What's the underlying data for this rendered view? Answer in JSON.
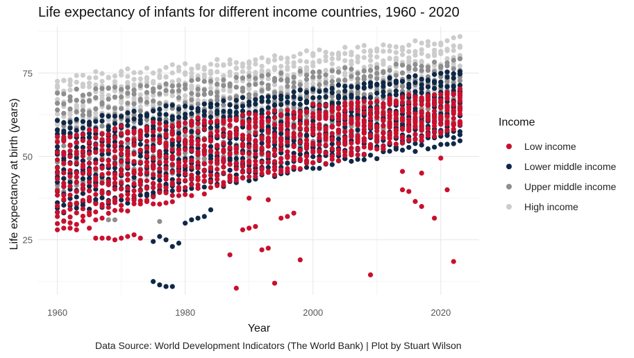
{
  "title": "Life expectancy of infants for different income countries, 1960 - 2020",
  "caption": "Data Source: World Development Indicators (The World Bank) | Plot by Stuart Wilson",
  "legend": {
    "title": "Income",
    "items": [
      {
        "label": "Low income",
        "color": "#c8102e"
      },
      {
        "label": "Lower middle income",
        "color": "#0f2847"
      },
      {
        "label": "Upper middle income",
        "color": "#8e8e8e"
      },
      {
        "label": "High income",
        "color": "#cccccc"
      }
    ]
  },
  "chart_data": {
    "type": "scatter",
    "title": "Life expectancy of infants for different income countries, 1960 - 2020",
    "xlabel": "Year",
    "ylabel": "Life expectancy at birth (years)",
    "xlim": [
      1957,
      2026
    ],
    "ylim": [
      8.5,
      89
    ],
    "x_ticks": [
      1960,
      1980,
      2000,
      2020
    ],
    "y_ticks": [
      25,
      50,
      75
    ],
    "grid": true,
    "legend_position": "right",
    "year_range": [
      1960,
      2023
    ],
    "series": [
      {
        "name": "High income",
        "color": "#cccccc",
        "low_start": 55,
        "low_end": 67,
        "high_start": 74,
        "high_end": 86,
        "count": 12
      },
      {
        "name": "Upper middle income",
        "color": "#8e8e8e",
        "low_start": 38,
        "low_end": 61,
        "high_start": 70,
        "high_end": 79,
        "count": 12,
        "outliers": [
          [
            1968,
            31
          ],
          [
            1969,
            31
          ],
          [
            1976,
            30.5
          ]
        ]
      },
      {
        "name": "Lower middle income",
        "color": "#0f2847",
        "low_start": 32,
        "low_end": 54,
        "high_start": 61,
        "high_end": 76,
        "count": 14,
        "outliers": [
          [
            1975,
            24.5
          ],
          [
            1976,
            26
          ],
          [
            1977,
            25
          ],
          [
            1978,
            23
          ],
          [
            1979,
            24
          ],
          [
            1975,
            12.5
          ],
          [
            1976,
            11.5
          ],
          [
            1977,
            11
          ],
          [
            1978,
            11
          ],
          [
            1980,
            30
          ],
          [
            1981,
            31
          ],
          [
            1982,
            31.5
          ],
          [
            1983,
            32
          ],
          [
            1984,
            34
          ]
        ]
      },
      {
        "name": "Low income",
        "color": "#c8102e",
        "low_start": 28,
        "low_end": 58,
        "high_start": 57,
        "high_end": 70,
        "count": 13,
        "outliers": [
          [
            1960,
            28
          ],
          [
            1961,
            28.5
          ],
          [
            1962,
            28.5
          ],
          [
            1963,
            28
          ],
          [
            1965,
            28.5
          ],
          [
            1966,
            25.5
          ],
          [
            1967,
            25.5
          ],
          [
            1968,
            25.5
          ],
          [
            1969,
            25
          ],
          [
            1970,
            25.5
          ],
          [
            1971,
            26
          ],
          [
            1972,
            26.5
          ],
          [
            1973,
            25.5
          ],
          [
            1987,
            20.5
          ],
          [
            1988,
            10.5
          ],
          [
            1989,
            28
          ],
          [
            1990,
            28.5
          ],
          [
            1991,
            29
          ],
          [
            1992,
            22
          ],
          [
            1993,
            22.5
          ],
          [
            1994,
            12
          ],
          [
            1995,
            31.5
          ],
          [
            1996,
            32
          ],
          [
            1997,
            33
          ],
          [
            1998,
            19
          ],
          [
            1990,
            37.5
          ],
          [
            1993,
            37
          ],
          [
            2009,
            14.5
          ],
          [
            2014,
            45.5
          ],
          [
            2014,
            40
          ],
          [
            2015,
            39.5
          ],
          [
            2016,
            36.5
          ],
          [
            2017,
            35
          ],
          [
            2017,
            45
          ],
          [
            2019,
            31.5
          ],
          [
            2020,
            49.5
          ],
          [
            2021,
            40
          ],
          [
            2022,
            18.5
          ]
        ]
      }
    ]
  }
}
